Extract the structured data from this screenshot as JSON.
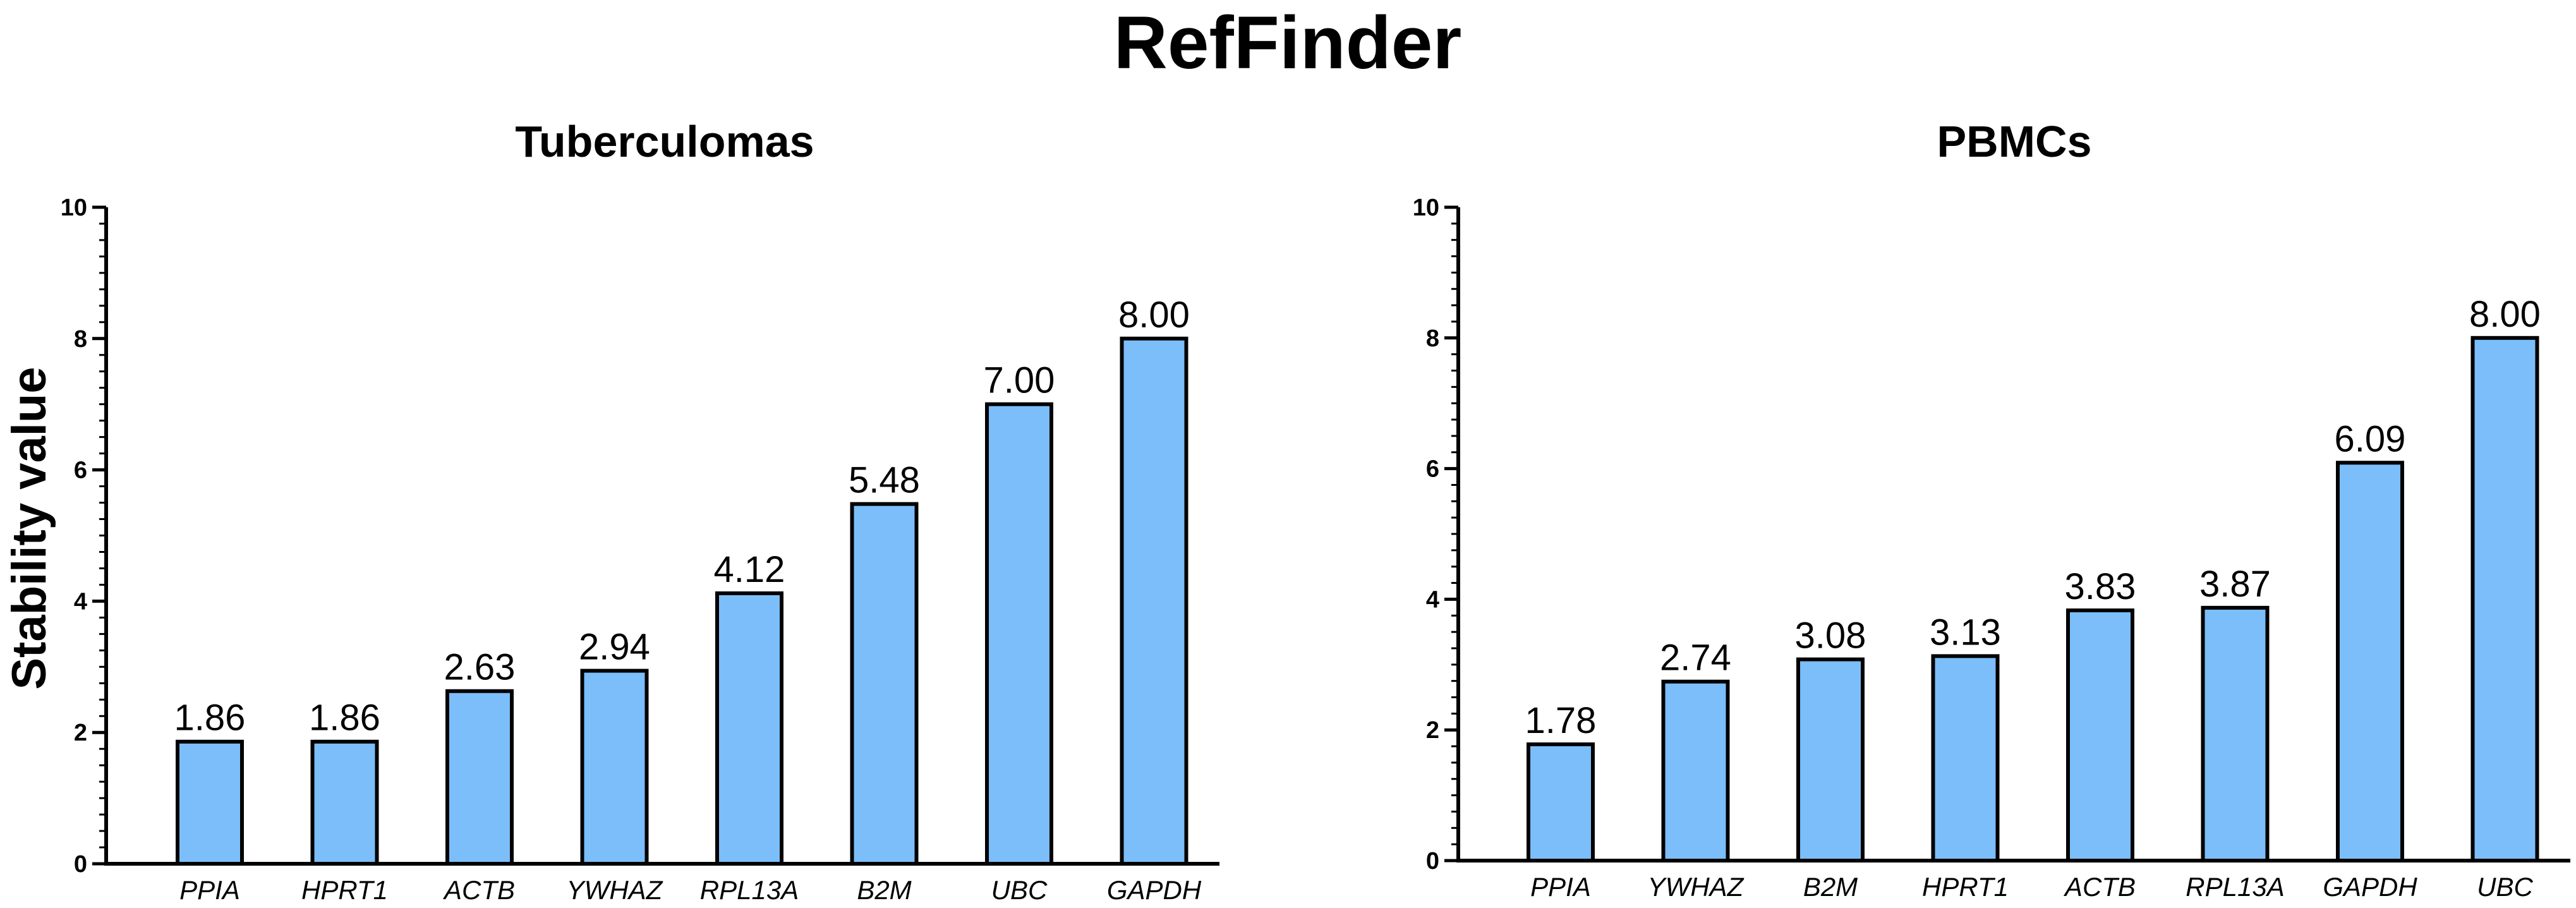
{
  "figure": {
    "title": "RefFinder",
    "ylabel": "Stability value"
  },
  "chart_data": [
    {
      "type": "bar",
      "title": "Tuberculomas",
      "categories": [
        "PPIA",
        "HPRT1",
        "ACTB",
        "YWHAZ",
        "RPL13A",
        "B2M",
        "UBC",
        "GAPDH"
      ],
      "values": [
        1.86,
        1.86,
        2.63,
        2.94,
        4.12,
        5.48,
        7.0,
        8.0
      ],
      "data_labels": [
        "1.86",
        "1.86",
        "2.63",
        "2.94",
        "4.12",
        "5.48",
        "7.00",
        "8.00"
      ],
      "ylabel": "Stability value",
      "ylim": [
        0,
        10
      ],
      "yticks": [
        "0",
        "2",
        "4",
        "6",
        "8",
        "10"
      ],
      "bar_color": "#7bbef9",
      "bar_edge_color": "#000000"
    },
    {
      "type": "bar",
      "title": "PBMCs",
      "categories": [
        "PPIA",
        "YWHAZ",
        "B2M",
        "HPRT1",
        "ACTB",
        "RPL13A",
        "GAPDH",
        "UBC"
      ],
      "values": [
        1.78,
        2.74,
        3.08,
        3.13,
        3.83,
        3.87,
        6.09,
        8.0
      ],
      "data_labels": [
        "1.78",
        "2.74",
        "3.08",
        "3.13",
        "3.83",
        "3.87",
        "6.09",
        "8.00"
      ],
      "ylabel": "",
      "ylim": [
        0,
        10
      ],
      "yticks": [
        "0",
        "2",
        "4",
        "6",
        "8",
        "10"
      ],
      "bar_color": "#7bbef9",
      "bar_edge_color": "#000000"
    }
  ]
}
